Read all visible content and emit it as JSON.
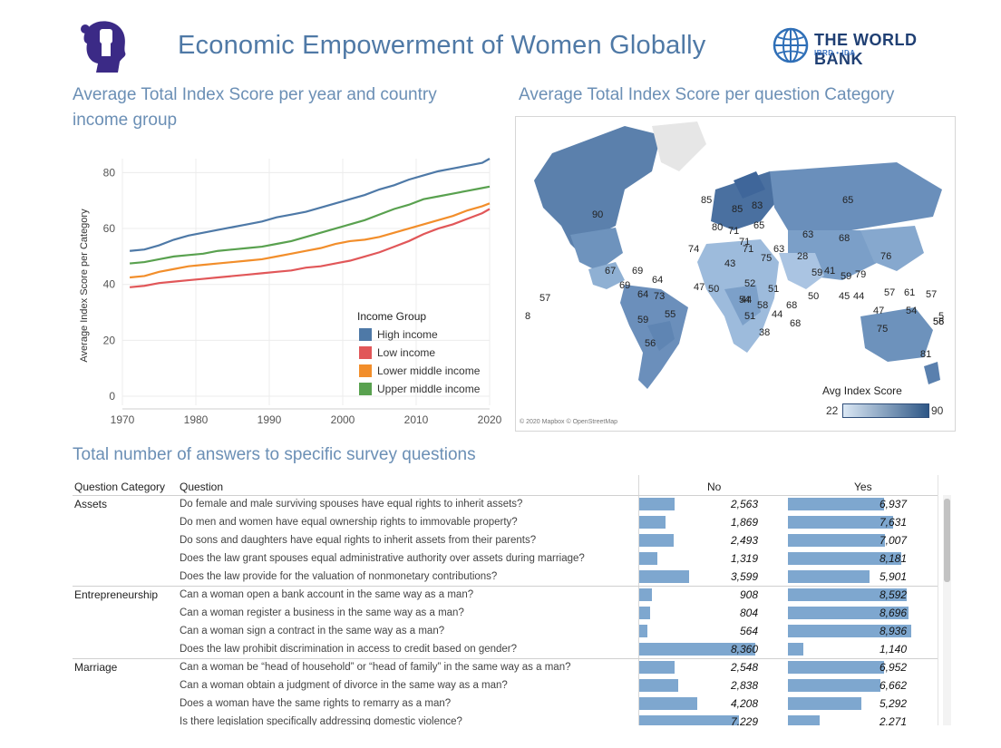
{
  "header": {
    "title": "Economic Empowerment of Women Globally",
    "org_name": "THE WORLD BANK",
    "org_sub": "IBRD • IDA"
  },
  "line_section": {
    "title_line1": "Average Total Index Score per year and country",
    "title_line2": "income group"
  },
  "map_section": {
    "title": "Average Total Index Score per question Category",
    "credit": "© 2020 Mapbox © OpenStreetMap",
    "legend_title": "Avg Index Score",
    "legend_min": "22",
    "legend_max": "90",
    "labels": [
      "90",
      "85",
      "83",
      "85",
      "65",
      "80",
      "71",
      "65",
      "63",
      "68",
      "74",
      "71",
      "63",
      "76",
      "43",
      "75",
      "28",
      "59",
      "41",
      "59",
      "79",
      "67",
      "69",
      "64",
      "69",
      "64",
      "47",
      "50",
      "52",
      "51",
      "54",
      "73",
      "44",
      "58",
      "50",
      "45",
      "44",
      "57",
      "61",
      "57",
      "57",
      "55",
      "51",
      "68",
      "44",
      "68",
      "47",
      "54",
      "56",
      "59",
      "56",
      "38",
      "75",
      "81",
      "58",
      "8",
      "5",
      "71"
    ]
  },
  "chart_data": {
    "type": "line",
    "title": "",
    "xlabel": "",
    "ylabel": "Average Index Score per Category",
    "xlim": [
      1970,
      2020
    ],
    "ylim": [
      0,
      85
    ],
    "x_ticks": [
      "1970",
      "1980",
      "1990",
      "2000",
      "2010",
      "2020"
    ],
    "y_ticks": [
      "0",
      "20",
      "40",
      "60",
      "80"
    ],
    "legend_title": "Income Group",
    "legend_position": "bottom-right",
    "x": [
      1971,
      1973,
      1975,
      1977,
      1979,
      1981,
      1983,
      1985,
      1987,
      1989,
      1991,
      1993,
      1995,
      1997,
      1999,
      2001,
      2003,
      2005,
      2007,
      2009,
      2011,
      2013,
      2015,
      2017,
      2019,
      2020
    ],
    "series": [
      {
        "name": "High income",
        "color": "#4e79a7",
        "values": [
          52,
          52.5,
          54,
          56,
          57.5,
          58.5,
          59.5,
          60.5,
          61.5,
          62.5,
          64,
          65,
          66,
          67.5,
          69,
          70.5,
          72,
          74,
          75.5,
          77.5,
          79,
          80.5,
          81.5,
          82.5,
          83.5,
          85
        ]
      },
      {
        "name": "Low income",
        "color": "#e15759",
        "values": [
          39,
          39.5,
          40.5,
          41,
          41.5,
          42,
          42.5,
          43,
          43.5,
          44,
          44.5,
          45,
          46,
          46.5,
          47.5,
          48.5,
          50,
          51.5,
          53.5,
          55.5,
          58,
          60,
          61.5,
          63.5,
          65.5,
          67
        ]
      },
      {
        "name": "Lower middle income",
        "color": "#f28e2b",
        "values": [
          42.5,
          43,
          44.5,
          45.5,
          46.5,
          47,
          47.5,
          48,
          48.5,
          49,
          50,
          51,
          52,
          53,
          54.5,
          55.5,
          56,
          57,
          58.5,
          60,
          61.5,
          63,
          64.5,
          66.5,
          68,
          69
        ]
      },
      {
        "name": "Upper middle income",
        "color": "#59a14f",
        "values": [
          47.5,
          48,
          49,
          50,
          50.5,
          51,
          52,
          52.5,
          53,
          53.5,
          54.5,
          55.5,
          57,
          58.5,
          60,
          61.5,
          63,
          65,
          67,
          68.5,
          70.5,
          71.5,
          72.5,
          73.5,
          74.5,
          75
        ]
      }
    ]
  },
  "table": {
    "title": "Total number of answers to specific survey questions",
    "col_category": "Question Category",
    "col_question": "Question",
    "col_no": "No",
    "col_yes": "Yes",
    "rows": [
      {
        "category": "Assets",
        "question": "Do female and male surviving spouses have equal rights to inherit assets?",
        "no": "2,563",
        "yes": "6,937",
        "no_val": 2563,
        "yes_val": 6937
      },
      {
        "category": "",
        "question": "Do men and women have equal ownership rights to immovable property?",
        "no": "1,869",
        "yes": "7,631",
        "no_val": 1869,
        "yes_val": 7631
      },
      {
        "category": "",
        "question": "Do sons and daughters have equal rights to inherit assets from their parents?",
        "no": "2,493",
        "yes": "7,007",
        "no_val": 2493,
        "yes_val": 7007
      },
      {
        "category": "",
        "question": "Does the law grant spouses equal administrative authority over assets during marriage?",
        "no": "1,319",
        "yes": "8,181",
        "no_val": 1319,
        "yes_val": 8181
      },
      {
        "category": "",
        "question": "Does the law provide for the valuation of nonmonetary contributions?",
        "no": "3,599",
        "yes": "5,901",
        "no_val": 3599,
        "yes_val": 5901
      },
      {
        "category": "Entrepreneurship",
        "question": "Can a woman open a bank account in the same way as a man?",
        "no": "908",
        "yes": "8,592",
        "no_val": 908,
        "yes_val": 8592
      },
      {
        "category": "",
        "question": "Can a woman register a business in the same way as a man?",
        "no": "804",
        "yes": "8,696",
        "no_val": 804,
        "yes_val": 8696
      },
      {
        "category": "",
        "question": "Can a woman sign a contract in the same way as a man?",
        "no": "564",
        "yes": "8,936",
        "no_val": 564,
        "yes_val": 8936
      },
      {
        "category": "",
        "question": "Does the law prohibit discrimination in access to credit based on gender?",
        "no": "8,360",
        "yes": "1,140",
        "no_val": 8360,
        "yes_val": 1140
      },
      {
        "category": "Marriage",
        "question": "Can a woman be “head of household” or “head of family” in the same way as a man?",
        "no": "2,548",
        "yes": "6,952",
        "no_val": 2548,
        "yes_val": 6952
      },
      {
        "category": "",
        "question": "Can a woman obtain a judgment of divorce in the same way as a man?",
        "no": "2,838",
        "yes": "6,662",
        "no_val": 2838,
        "yes_val": 6662
      },
      {
        "category": "",
        "question": "Does a woman have the same rights to remarry as a man?",
        "no": "4,208",
        "yes": "5,292",
        "no_val": 4208,
        "yes_val": 5292
      },
      {
        "category": "",
        "question": "Is there legislation specifically addressing domestic violence?",
        "no": "7,229",
        "yes": "2,271",
        "no_val": 7229,
        "yes_val": 2271
      }
    ]
  }
}
